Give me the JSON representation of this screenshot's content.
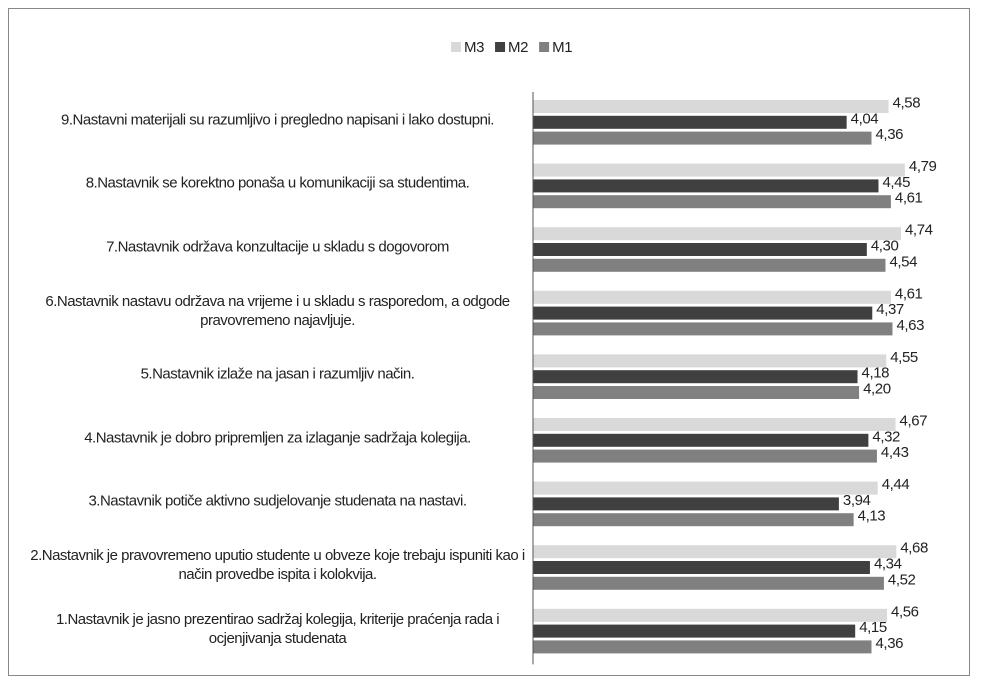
{
  "chart_data": {
    "type": "hbar",
    "categories": [
      "9.Nastavni materijali su razumljivo i pregledno napisani i lako dostupni.",
      "8.Nastavnik se korektno ponaša u komunikaciji sa studentima.",
      "7.Nastavnik održava  konzultacije u skladu s dogovorom",
      "6.Nastavnik nastavu održava na vrijeme i u skladu s rasporedom, a odgode pravovremeno najavljuje.",
      "5.Nastavnik izlaže na jasan i razumljiv način.",
      "4.Nastavnik je dobro pripremljen za izlaganje sadržaja kolegija.",
      "3.Nastavnik potiče aktivno sudjelovanje studenata na nastavi.",
      "2.Nastavnik je pravovremeno uputio studente u obveze koje trebaju ispuniti kao i način provedbe ispita i kolokvija.",
      "1.Nastavnik je jasno prezentirao sadržaj kolegija, kriterije praćenja rada i ocjenjivanja studenata"
    ],
    "series": [
      {
        "name": "M3",
        "color": "#d9d9d9",
        "values": [
          4.58,
          4.79,
          4.74,
          4.61,
          4.55,
          4.67,
          4.44,
          4.68,
          4.56
        ],
        "value_labels": [
          "4,58",
          "4,79",
          "4,74",
          "4,61",
          "4,55",
          "4,67",
          "4,44",
          "4,68",
          "4,56"
        ]
      },
      {
        "name": "M2",
        "color": "#404040",
        "values": [
          4.04,
          4.45,
          4.3,
          4.37,
          4.18,
          4.32,
          3.94,
          4.34,
          4.15
        ],
        "value_labels": [
          "4,04",
          "4,45",
          "4,30",
          "4,37",
          "4,18",
          "4,32",
          "3,94",
          "4,34",
          "4,15"
        ]
      },
      {
        "name": "M1",
        "color": "#808080",
        "values": [
          4.36,
          4.61,
          4.54,
          4.63,
          4.2,
          4.43,
          4.13,
          4.52,
          4.36
        ],
        "value_labels": [
          "4,36",
          "4,61",
          "4,54",
          "4,63",
          "4,20",
          "4,43",
          "4,13",
          "4,52",
          "4,36"
        ]
      }
    ],
    "xlim": [
      0,
      5.5
    ],
    "legend": "top"
  }
}
